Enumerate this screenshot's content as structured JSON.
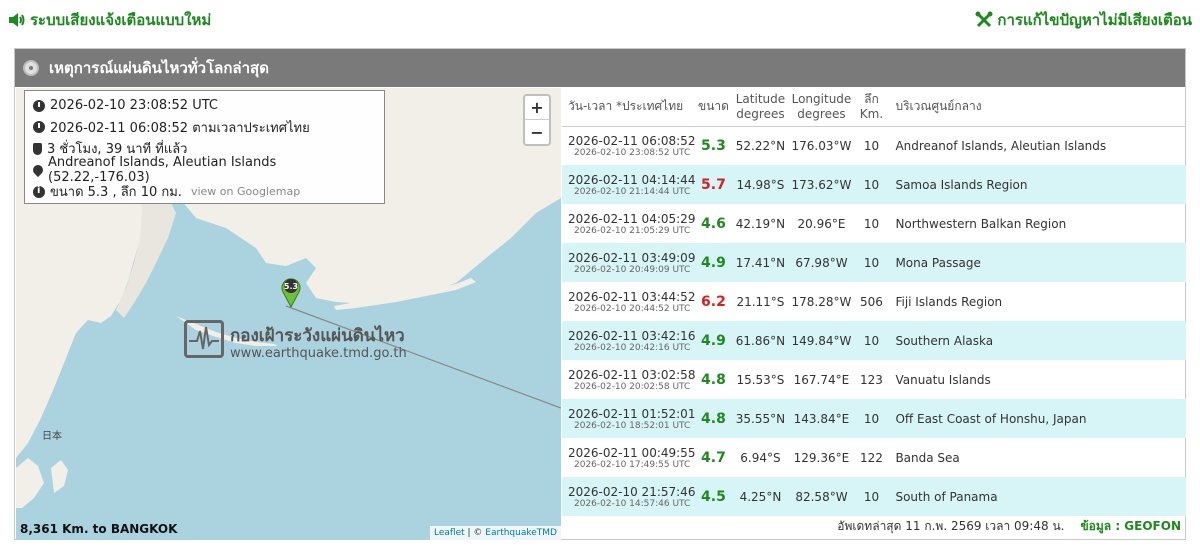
{
  "topbar": {
    "left_label": "ระบบเสียงแจ้งเตือนแบบใหม่",
    "right_label": "การแก้ไขปัญหาไม่มีเสียงเตือน"
  },
  "panel": {
    "title": "เหตุการณ์แผ่นดินไหวทั่วโลกล่าสุด"
  },
  "map": {
    "info": {
      "utc_time": "2026-02-10 23:08:52 UTC",
      "thai_time": "2026-02-11 06:08:52 ตามเวลาประเทศไทย",
      "elapsed": "3 ชั่วโมง, 39 นาที ที่แล้ว",
      "location": "Andreanof Islands, Aleutian Islands (52.22,-176.03)",
      "magnitude_depth": "ขนาด 5.3 , ลึก 10 กม.",
      "googlemap_link": "view on Googlemap"
    },
    "zoom_in": "+",
    "zoom_out": "−",
    "marker_label": "5.3",
    "watermark_title": "กองเฝ้าระวังแผ่นดินไหว",
    "watermark_url": "www.earthquake.tmd.go.th",
    "japan_label": "日本",
    "distance": "8,361 Km. to BANGKOK",
    "attribution_leaflet": "Leaflet",
    "attribution_rest": " | © ",
    "attribution_tmd": "EarthquakeTMD"
  },
  "table": {
    "headers": {
      "datetime": "วัน-เวลา *ประเทศไทย",
      "magnitude": "ขนาด",
      "latitude": "Latitude degrees",
      "longitude": "Longitude degrees",
      "depth": "ลึก Km.",
      "region": "บริเวณศูนย์กลาง"
    },
    "rows": [
      {
        "local": "2026-02-11 06:08:52",
        "utc": "2026-02-10 23:08:52 UTC",
        "mag": "5.3",
        "mag_color": "#1d8a1d",
        "lat": "52.22°N",
        "lon": "176.03°W",
        "depth": "10",
        "region": "Andreanof Islands, Aleutian Islands"
      },
      {
        "local": "2026-02-11 04:14:44",
        "utc": "2026-02-10 21:14:44 UTC",
        "mag": "5.7",
        "mag_color": "#d62020",
        "lat": "14.98°S",
        "lon": "173.62°W",
        "depth": "10",
        "region": "Samoa Islands Region"
      },
      {
        "local": "2026-02-11 04:05:29",
        "utc": "2026-02-10 21:05:29 UTC",
        "mag": "4.6",
        "mag_color": "#1d8a1d",
        "lat": "42.19°N",
        "lon": "20.96°E",
        "depth": "10",
        "region": "Northwestern Balkan Region"
      },
      {
        "local": "2026-02-11 03:49:09",
        "utc": "2026-02-10 20:49:09 UTC",
        "mag": "4.9",
        "mag_color": "#1d8a1d",
        "lat": "17.41°N",
        "lon": "67.98°W",
        "depth": "10",
        "region": "Mona Passage"
      },
      {
        "local": "2026-02-11 03:44:52",
        "utc": "2026-02-10 20:44:52 UTC",
        "mag": "6.2",
        "mag_color": "#d62020",
        "lat": "21.11°S",
        "lon": "178.28°W",
        "depth": "506",
        "region": "Fiji Islands Region"
      },
      {
        "local": "2026-02-11 03:42:16",
        "utc": "2026-02-10 20:42:16 UTC",
        "mag": "4.9",
        "mag_color": "#1d8a1d",
        "lat": "61.86°N",
        "lon": "149.84°W",
        "depth": "10",
        "region": "Southern Alaska"
      },
      {
        "local": "2026-02-11 03:02:58",
        "utc": "2026-02-10 20:02:58 UTC",
        "mag": "4.8",
        "mag_color": "#1d8a1d",
        "lat": "15.53°S",
        "lon": "167.74°E",
        "depth": "123",
        "region": "Vanuatu Islands"
      },
      {
        "local": "2026-02-11 01:52:01",
        "utc": "2026-02-10 18:52:01 UTC",
        "mag": "4.8",
        "mag_color": "#1d8a1d",
        "lat": "35.55°N",
        "lon": "143.84°E",
        "depth": "10",
        "region": "Off East Coast of Honshu, Japan"
      },
      {
        "local": "2026-02-11 00:49:55",
        "utc": "2026-02-10 17:49:55 UTC",
        "mag": "4.7",
        "mag_color": "#1d8a1d",
        "lat": "6.94°S",
        "lon": "129.36°E",
        "depth": "122",
        "region": "Banda Sea"
      },
      {
        "local": "2026-02-10 21:57:46",
        "utc": "2026-02-10 14:57:46 UTC",
        "mag": "4.5",
        "mag_color": "#1d8a1d",
        "lat": "4.25°N",
        "lon": "82.58°W",
        "depth": "10",
        "region": "South of Panama"
      }
    ]
  },
  "footer": {
    "updated": "อัพเดทล่าสุด 11 ก.พ. 2569 เวลา 09:48 น.",
    "source": "ข้อมูล : GEOFON"
  }
}
